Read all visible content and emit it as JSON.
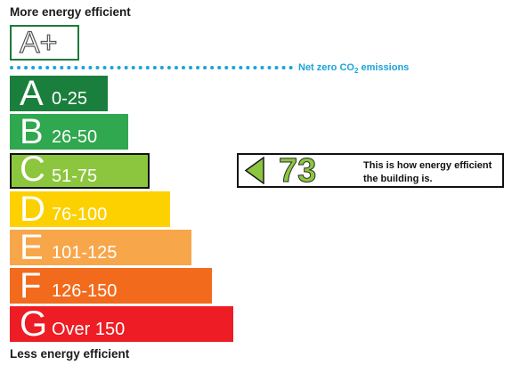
{
  "headings": {
    "top": "More energy efficient",
    "bottom": "Less energy efficient"
  },
  "aplus": {
    "label": "A+"
  },
  "net_zero": {
    "label_main": "Net zero CO",
    "label_sub": "2",
    "label_end": " emissions",
    "color": "#1aa3d9"
  },
  "bands": [
    {
      "letter": "A",
      "range": "0-25",
      "color": "#1a7f3c"
    },
    {
      "letter": "B",
      "range": "26-50",
      "color": "#2fa84f"
    },
    {
      "letter": "C",
      "range": "51-75",
      "color": "#8cc63f"
    },
    {
      "letter": "D",
      "range": "76-100",
      "color": "#fdd000"
    },
    {
      "letter": "E",
      "range": "101-125",
      "color": "#f7a64a"
    },
    {
      "letter": "F",
      "range": "126-150",
      "color": "#f26b1d"
    },
    {
      "letter": "G",
      "range": "Over 150",
      "color": "#ee1c24"
    }
  ],
  "current_rating": {
    "band": "C",
    "score": "73",
    "description": "This is how energy efficient the building is.",
    "color": "#8cc63f"
  }
}
